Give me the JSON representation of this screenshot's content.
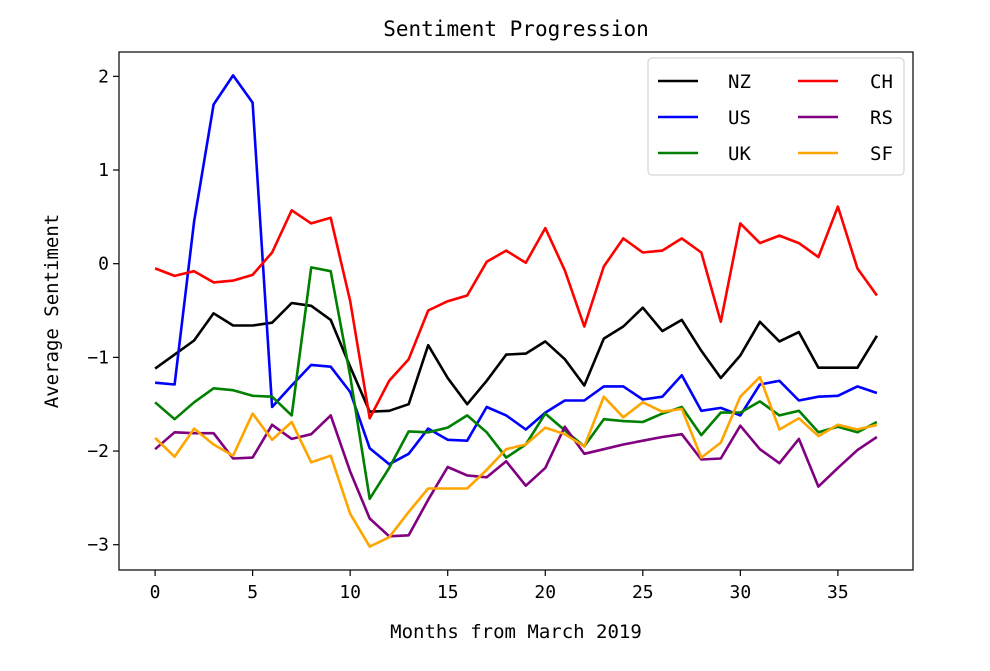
{
  "chart_data": {
    "type": "line",
    "title": "Sentiment Progression",
    "xlabel": "Months from March 2019",
    "ylabel": "Average Sentiment",
    "xlim": [
      -1.85,
      38.85
    ],
    "ylim": [
      -3.27,
      2.26
    ],
    "xticks": [
      0,
      5,
      10,
      15,
      20,
      25,
      30,
      35
    ],
    "yticks": [
      2,
      1,
      0,
      -1,
      -2,
      -3
    ],
    "ytick_labels": [
      "2",
      "1",
      "0",
      "−1",
      "−2",
      "−3"
    ],
    "grid": false,
    "legend_placement": "top-right",
    "legend_columns": 2,
    "x": [
      0,
      1,
      2,
      3,
      4,
      5,
      6,
      7,
      8,
      9,
      10,
      11,
      12,
      13,
      14,
      15,
      16,
      17,
      18,
      19,
      20,
      21,
      22,
      23,
      24,
      25,
      26,
      27,
      28,
      29,
      30,
      31,
      32,
      33,
      34,
      35,
      36,
      37
    ],
    "series": [
      {
        "name": "NZ",
        "color": "#000000",
        "values": [
          -1.12,
          -0.97,
          -0.82,
          -0.53,
          -0.66,
          -0.66,
          -0.63,
          -0.42,
          -0.45,
          -0.6,
          -1.1,
          -1.58,
          -1.57,
          -1.5,
          -0.87,
          -1.22,
          -1.5,
          -1.25,
          -0.97,
          -0.96,
          -0.83,
          -1.02,
          -1.3,
          -0.8,
          -0.67,
          -0.47,
          -0.72,
          -0.6,
          -0.93,
          -1.22,
          -0.98,
          -0.62,
          -0.83,
          -0.73,
          -1.11,
          -1.11,
          -1.11,
          -0.77
        ]
      },
      {
        "name": "US",
        "color": "#0000ff",
        "values": [
          -1.27,
          -1.29,
          0.45,
          1.7,
          2.01,
          1.72,
          -1.53,
          -1.3,
          -1.08,
          -1.1,
          -1.37,
          -1.97,
          -2.14,
          -2.03,
          -1.76,
          -1.88,
          -1.89,
          -1.53,
          -1.62,
          -1.77,
          -1.59,
          -1.46,
          -1.46,
          -1.31,
          -1.31,
          -1.45,
          -1.42,
          -1.19,
          -1.57,
          -1.54,
          -1.62,
          -1.29,
          -1.25,
          -1.46,
          -1.42,
          -1.41,
          -1.31,
          -1.38
        ]
      },
      {
        "name": "UK",
        "color": "#008000",
        "values": [
          -1.48,
          -1.66,
          -1.48,
          -1.33,
          -1.35,
          -1.41,
          -1.42,
          -1.62,
          -0.04,
          -0.08,
          -1.2,
          -2.51,
          -2.18,
          -1.79,
          -1.8,
          -1.75,
          -1.62,
          -1.8,
          -2.07,
          -1.93,
          -1.6,
          -1.78,
          -1.95,
          -1.66,
          -1.68,
          -1.69,
          -1.6,
          -1.53,
          -1.83,
          -1.59,
          -1.59,
          -1.47,
          -1.62,
          -1.57,
          -1.8,
          -1.74,
          -1.8,
          -1.69
        ]
      },
      {
        "name": "CH",
        "color": "#ff0000",
        "values": [
          -0.05,
          -0.13,
          -0.08,
          -0.2,
          -0.18,
          -0.12,
          0.12,
          0.57,
          0.43,
          0.49,
          -0.4,
          -1.65,
          -1.25,
          -1.02,
          -0.5,
          -0.4,
          -0.34,
          0.02,
          0.14,
          0.01,
          0.38,
          -0.07,
          -0.67,
          -0.03,
          0.27,
          0.12,
          0.14,
          0.27,
          0.12,
          -0.62,
          0.43,
          0.22,
          0.3,
          0.22,
          0.07,
          0.61,
          -0.05,
          -0.34
        ]
      },
      {
        "name": "RS",
        "color": "#800080",
        "values": [
          -1.98,
          -1.8,
          -1.81,
          -1.81,
          -2.08,
          -2.07,
          -1.72,
          -1.87,
          -1.82,
          -1.62,
          -2.22,
          -2.72,
          -2.91,
          -2.9,
          -2.52,
          -2.17,
          -2.26,
          -2.28,
          -2.11,
          -2.37,
          -2.18,
          -1.74,
          -2.03,
          -1.98,
          -1.93,
          -1.89,
          -1.85,
          -1.82,
          -2.09,
          -2.08,
          -1.73,
          -1.98,
          -2.13,
          -1.87,
          -2.38,
          -2.18,
          -1.99,
          -1.85
        ]
      },
      {
        "name": "SF",
        "color": "#ffa500",
        "values": [
          -1.86,
          -2.06,
          -1.76,
          -1.93,
          -2.05,
          -1.6,
          -1.88,
          -1.69,
          -2.12,
          -2.05,
          -2.67,
          -3.02,
          -2.92,
          -2.65,
          -2.4,
          -2.4,
          -2.4,
          -2.2,
          -1.98,
          -1.93,
          -1.75,
          -1.82,
          -1.95,
          -1.42,
          -1.64,
          -1.48,
          -1.58,
          -1.55,
          -2.07,
          -1.91,
          -1.42,
          -1.21,
          -1.77,
          -1.65,
          -1.84,
          -1.72,
          -1.77,
          -1.72
        ]
      }
    ]
  }
}
